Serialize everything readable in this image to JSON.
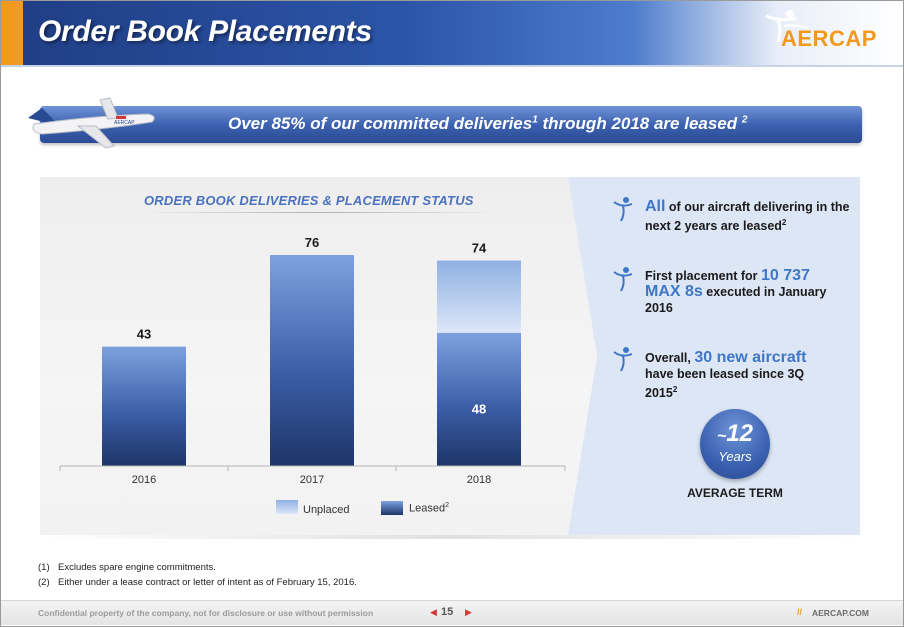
{
  "header": {
    "title": "Order Book Placements",
    "logo_text": "AERCAP",
    "accent_color": "#f29a1f",
    "brand_color": "#2c55a8"
  },
  "banner": {
    "text_main": "Over 85% of our committed deliveries",
    "sup1": "1",
    "text_tail": " through 2018 are leased ",
    "sup2": "2"
  },
  "chart_data": {
    "type": "bar",
    "title": "ORDER BOOK DELIVERIES & PLACEMENT STATUS",
    "categories": [
      "2016",
      "2017",
      "2018"
    ],
    "totals": [
      43,
      76,
      74
    ],
    "series": [
      {
        "name": "Leased",
        "values": [
          43,
          76,
          48
        ]
      },
      {
        "name": "Unplaced",
        "values": [
          0,
          0,
          26
        ]
      }
    ],
    "data_labels": {
      "totals": [
        "43",
        "76",
        "74"
      ],
      "leased_2018": "48"
    },
    "ylim": [
      0,
      85
    ],
    "grid": false,
    "legend_position": "bottom"
  },
  "legend": {
    "unplaced": "Unplaced",
    "leased": "Leased",
    "leased_sup": "2"
  },
  "bullets": [
    {
      "hl": "All",
      "text": " of our aircraft delivering in the next 2 years are leased",
      "sup": "2",
      "icon": "person-icon"
    },
    {
      "pre": "First placement for ",
      "hl": "10 737 MAX 8s",
      "text": " executed in January 2016",
      "icon": "person-icon"
    },
    {
      "pre": "Overall, ",
      "hl": "30 new aircraft",
      "text": " have been leased since 3Q 2015",
      "sup": "2",
      "icon": "person-icon"
    }
  ],
  "average_term": {
    "tilde": "~",
    "value": "12",
    "unit": "Years",
    "label": "AVERAGE TERM"
  },
  "footnotes": [
    {
      "num": "(1)",
      "text": "Excludes spare engine commitments."
    },
    {
      "num": "(2)",
      "text": "Either under a lease contract or letter of intent as of February 15, 2016."
    }
  ],
  "footer": {
    "confidential": "Confidential property of the company, not for disclosure or use without permission",
    "page": "15",
    "site": "AERCAP.COM",
    "slash": "//"
  }
}
